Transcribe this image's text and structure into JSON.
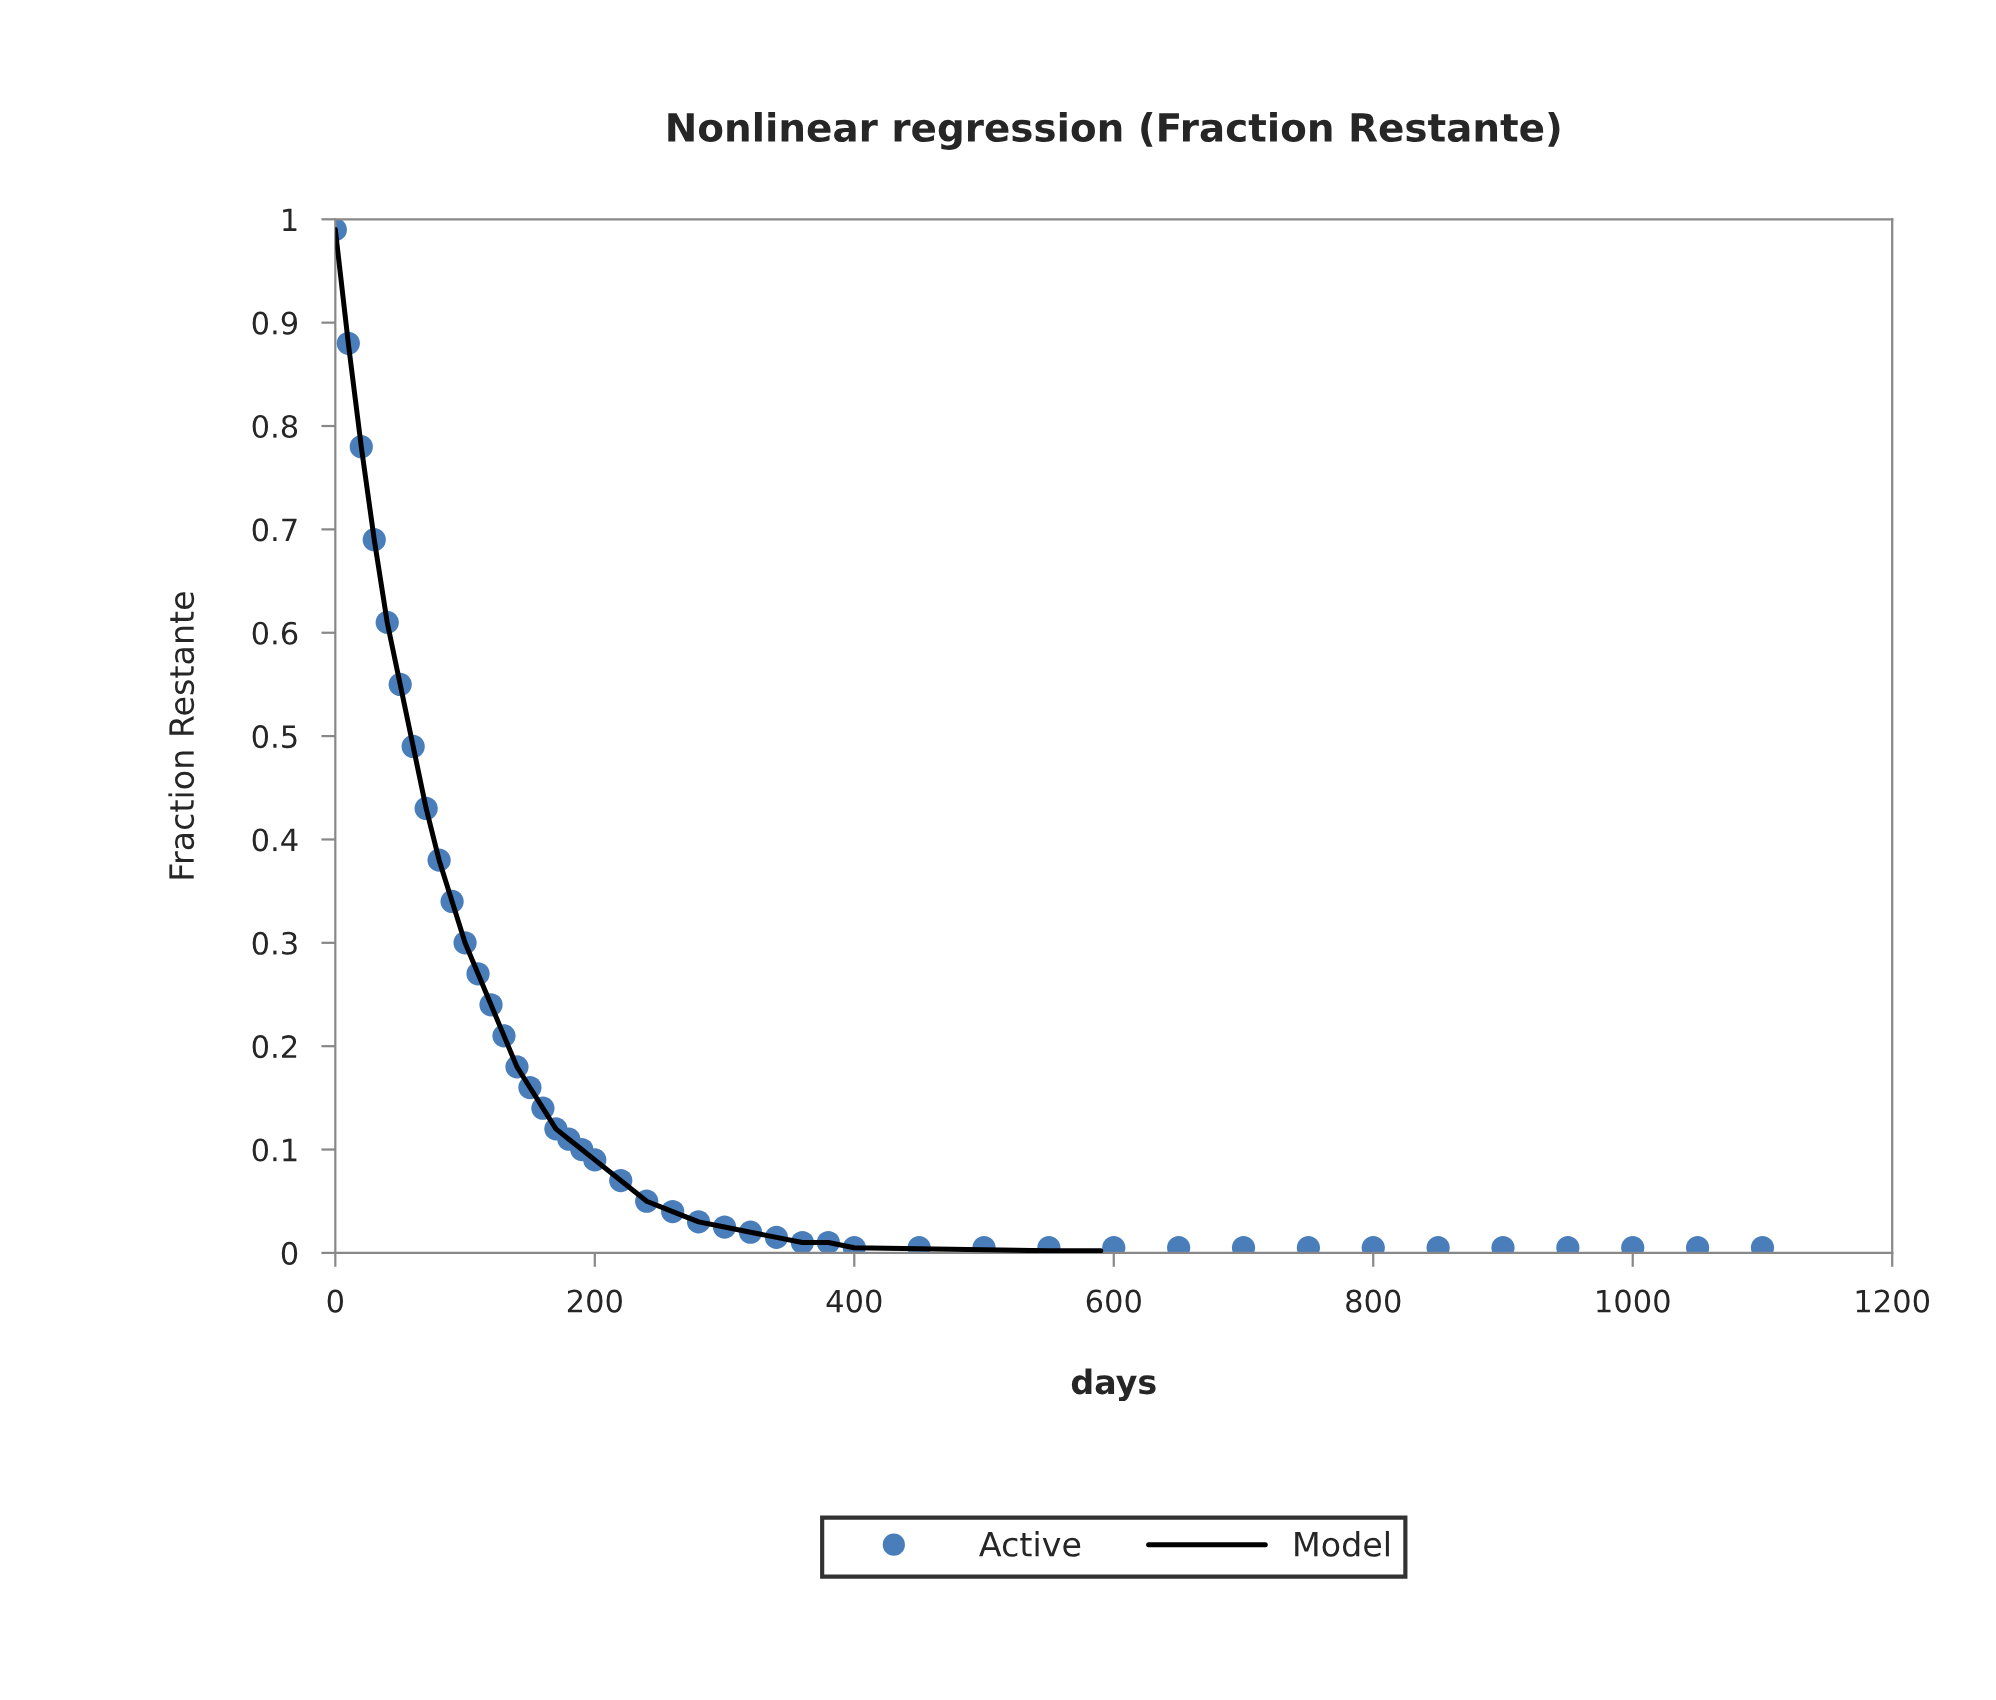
{
  "chart_data": {
    "type": "scatter",
    "title": "Nonlinear regression (Fraction Restante)",
    "xlabel": "days",
    "ylabel": "Fraction Restante",
    "xlim": [
      0,
      1200
    ],
    "xticks": [
      0,
      200,
      400,
      600,
      800,
      1000,
      1200
    ],
    "ylim": [
      0,
      1
    ],
    "yticks": [
      0,
      0.1,
      0.2,
      0.3,
      0.4,
      0.5,
      0.6,
      0.7,
      0.8,
      0.9,
      1
    ],
    "grid": false,
    "legend": "bottom",
    "series": [
      {
        "name": "Active",
        "marker": "circle",
        "color": "#4a7ebb",
        "x": [
          0,
          10,
          20,
          30,
          40,
          50,
          60,
          70,
          80,
          90,
          100,
          110,
          120,
          130,
          140,
          150,
          160,
          170,
          180,
          190,
          200,
          220,
          240,
          260,
          280,
          300,
          320,
          340,
          360,
          380,
          400,
          450,
          500,
          550,
          600,
          650,
          700,
          750,
          800,
          850,
          900,
          950,
          1000,
          1050,
          1100
        ],
        "values": [
          0.99,
          0.88,
          0.78,
          0.69,
          0.61,
          0.55,
          0.49,
          0.43,
          0.38,
          0.34,
          0.3,
          0.27,
          0.24,
          0.21,
          0.18,
          0.16,
          0.14,
          0.12,
          0.11,
          0.1,
          0.09,
          0.07,
          0.05,
          0.04,
          0.03,
          0.025,
          0.02,
          0.015,
          0.01,
          0.01,
          0.005,
          0.005,
          0.005,
          0.005,
          0.005,
          0.005,
          0.005,
          0.005,
          0.005,
          0.005,
          0.005,
          0.005,
          0.005,
          0.005,
          0.005
        ]
      },
      {
        "name": "Model",
        "type": "line",
        "color": "#000000",
        "line_style": "solid",
        "x": [
          0,
          10,
          20,
          30,
          40,
          50,
          60,
          70,
          80,
          90,
          100,
          110,
          120,
          130,
          140,
          150,
          160,
          170,
          180,
          190,
          200,
          220,
          240,
          260,
          280,
          300,
          320,
          340,
          360,
          380,
          400,
          450,
          500,
          550,
          590
        ],
        "values": [
          0.99,
          0.88,
          0.78,
          0.69,
          0.61,
          0.55,
          0.49,
          0.43,
          0.38,
          0.34,
          0.3,
          0.27,
          0.24,
          0.21,
          0.18,
          0.16,
          0.14,
          0.12,
          0.11,
          0.1,
          0.09,
          0.07,
          0.05,
          0.04,
          0.03,
          0.025,
          0.02,
          0.015,
          0.01,
          0.01,
          0.005,
          0.004,
          0.003,
          0.002,
          0.002
        ]
      }
    ]
  }
}
